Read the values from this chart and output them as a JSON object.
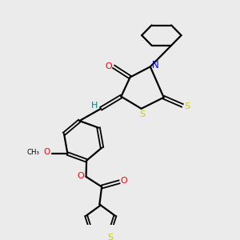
{
  "background_color": "#ebebeb",
  "bond_color": "#000000",
  "O_color": "#ff0000",
  "N_color": "#0000ff",
  "S_color": "#cccc00",
  "H_color": "#008080",
  "figsize": [
    3.0,
    3.0
  ],
  "dpi": 100,
  "xlim": [
    0,
    10
  ],
  "ylim": [
    0,
    10
  ]
}
